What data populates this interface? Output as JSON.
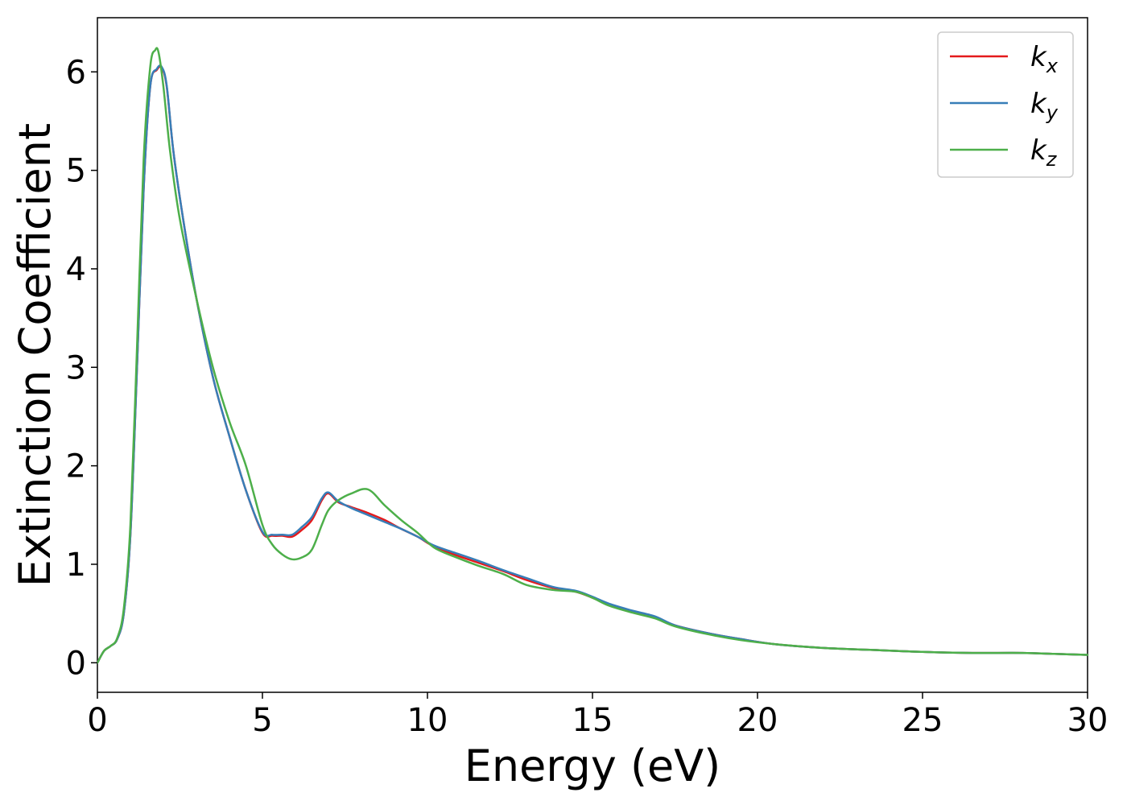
{
  "chart_data": {
    "type": "line",
    "xlabel": "Energy (eV)",
    "ylabel": "Extinction Coefficient",
    "xlim": [
      0,
      30
    ],
    "ylim": [
      -0.3,
      6.55
    ],
    "x_ticks": [
      0,
      5,
      10,
      15,
      20,
      25,
      30
    ],
    "y_ticks": [
      0,
      1,
      2,
      3,
      4,
      5,
      6
    ],
    "grid": false,
    "legend_position": "top-right",
    "series": [
      {
        "name": "k_x",
        "legend_base": "k",
        "legend_sub": "x",
        "color": "#e41a1c",
        "x": [
          0,
          0.2,
          0.4,
          0.6,
          0.8,
          1.0,
          1.2,
          1.4,
          1.6,
          1.8,
          1.95,
          2.1,
          2.3,
          2.6,
          3.0,
          3.5,
          4.0,
          4.5,
          5.0,
          5.3,
          5.6,
          5.9,
          6.2,
          6.5,
          6.8,
          7.0,
          7.3,
          7.7,
          8.2,
          8.7,
          9.2,
          9.7,
          10.2,
          10.8,
          11.5,
          12.3,
          13.0,
          13.8,
          14.5,
          15.0,
          15.5,
          16.2,
          16.9,
          17.5,
          18.5,
          19.5,
          20.5,
          22.0,
          23.5,
          25.0,
          26.5,
          28.0,
          29.0,
          30.0
        ],
        "y": [
          0.0,
          0.12,
          0.17,
          0.24,
          0.5,
          1.3,
          3.0,
          4.8,
          5.85,
          6.02,
          6.04,
          5.85,
          5.2,
          4.5,
          3.7,
          2.9,
          2.3,
          1.75,
          1.32,
          1.29,
          1.29,
          1.28,
          1.35,
          1.45,
          1.65,
          1.72,
          1.63,
          1.58,
          1.52,
          1.45,
          1.36,
          1.28,
          1.18,
          1.1,
          1.02,
          0.93,
          0.84,
          0.76,
          0.72,
          0.66,
          0.59,
          0.52,
          0.46,
          0.38,
          0.3,
          0.24,
          0.19,
          0.15,
          0.13,
          0.11,
          0.1,
          0.1,
          0.09,
          0.08
        ]
      },
      {
        "name": "k_y",
        "legend_base": "k",
        "legend_sub": "y",
        "color": "#377eb8",
        "x": [
          0,
          0.2,
          0.4,
          0.6,
          0.8,
          1.0,
          1.2,
          1.4,
          1.6,
          1.8,
          1.95,
          2.1,
          2.3,
          2.6,
          3.0,
          3.5,
          4.0,
          4.5,
          5.0,
          5.3,
          5.6,
          5.9,
          6.2,
          6.5,
          6.8,
          7.0,
          7.3,
          7.7,
          8.2,
          8.7,
          9.2,
          9.7,
          10.2,
          10.8,
          11.5,
          12.3,
          13.0,
          13.8,
          14.5,
          15.0,
          15.5,
          16.2,
          16.9,
          17.5,
          18.5,
          19.5,
          20.5,
          22.0,
          23.5,
          25.0,
          26.5,
          28.0,
          29.0,
          30.0
        ],
        "y": [
          0.0,
          0.12,
          0.17,
          0.24,
          0.5,
          1.3,
          3.0,
          4.8,
          5.85,
          6.03,
          6.05,
          5.86,
          5.2,
          4.5,
          3.7,
          2.9,
          2.3,
          1.75,
          1.33,
          1.3,
          1.3,
          1.3,
          1.38,
          1.48,
          1.67,
          1.73,
          1.64,
          1.57,
          1.5,
          1.43,
          1.36,
          1.28,
          1.19,
          1.12,
          1.04,
          0.94,
          0.86,
          0.77,
          0.73,
          0.67,
          0.6,
          0.53,
          0.47,
          0.38,
          0.3,
          0.24,
          0.19,
          0.15,
          0.13,
          0.11,
          0.1,
          0.1,
          0.09,
          0.08
        ]
      },
      {
        "name": "k_z",
        "legend_base": "k",
        "legend_sub": "z",
        "color": "#4daf4a",
        "x": [
          0,
          0.2,
          0.4,
          0.6,
          0.8,
          1.0,
          1.2,
          1.4,
          1.6,
          1.75,
          1.85,
          2.0,
          2.2,
          2.5,
          3.0,
          3.5,
          4.0,
          4.5,
          5.0,
          5.3,
          5.6,
          5.9,
          6.2,
          6.5,
          6.8,
          7.0,
          7.3,
          7.7,
          8.2,
          8.7,
          9.2,
          9.7,
          10.2,
          10.8,
          11.5,
          12.3,
          13.0,
          13.8,
          14.5,
          15.0,
          15.5,
          16.2,
          16.9,
          17.5,
          18.5,
          19.5,
          20.5,
          22.0,
          23.5,
          25.0,
          26.5,
          28.0,
          29.0,
          30.0
        ],
        "y": [
          0.0,
          0.12,
          0.17,
          0.25,
          0.55,
          1.4,
          3.2,
          5.1,
          6.05,
          6.22,
          6.2,
          5.85,
          5.2,
          4.5,
          3.7,
          3.0,
          2.45,
          2.0,
          1.4,
          1.2,
          1.1,
          1.05,
          1.07,
          1.15,
          1.4,
          1.55,
          1.65,
          1.72,
          1.76,
          1.6,
          1.45,
          1.32,
          1.17,
          1.08,
          0.99,
          0.9,
          0.79,
          0.74,
          0.72,
          0.66,
          0.58,
          0.51,
          0.45,
          0.37,
          0.29,
          0.23,
          0.19,
          0.15,
          0.13,
          0.11,
          0.1,
          0.1,
          0.09,
          0.08
        ]
      }
    ]
  }
}
